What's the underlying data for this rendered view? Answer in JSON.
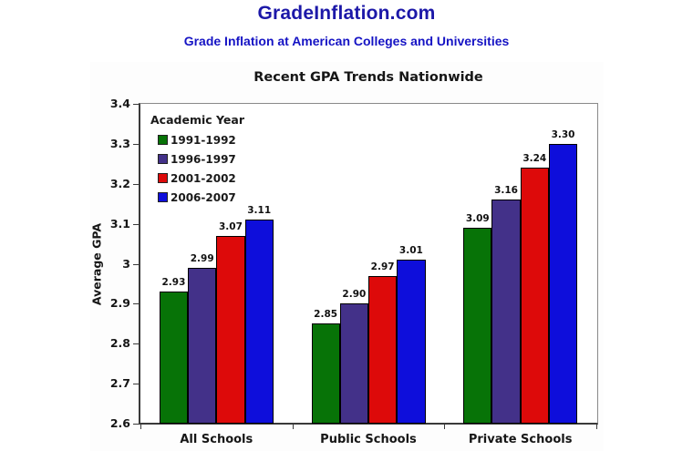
{
  "page": {
    "title": "GradeInflation.com",
    "subtitle": "Grade Inflation at American Colleges and Universities",
    "title_color": "#1c18a8",
    "subtitle_color": "#1513c4"
  },
  "chart_data": {
    "type": "bar",
    "title": "Recent GPA Trends Nationwide",
    "categories": [
      "All Schools",
      "Public Schools",
      "Private Schools"
    ],
    "series": [
      {
        "name": "1991-1992",
        "color": "#077307",
        "values": [
          2.93,
          2.85,
          3.09
        ]
      },
      {
        "name": "1996-1997",
        "color": "#433189",
        "values": [
          2.99,
          2.9,
          3.16
        ]
      },
      {
        "name": "2001-2002",
        "color": "#dd0a0a",
        "values": [
          3.07,
          2.97,
          3.24
        ]
      },
      {
        "name": "2006-2007",
        "color": "#0e0edb",
        "values": [
          3.11,
          3.01,
          3.3
        ]
      }
    ],
    "legend_title": "Academic Year",
    "legend_position": "top-left-inside",
    "xlabel": "",
    "ylabel": "Average GPA",
    "ylim": [
      2.6,
      3.4
    ],
    "ytick_step": 0.1,
    "ytick_labels": [
      "2.6",
      "2.7",
      "2.8",
      "2.9",
      "3",
      "3.1",
      "3.2",
      "3.3",
      "3.4"
    ],
    "value_labels": true,
    "value_label_decimals": 2,
    "grid": false
  }
}
